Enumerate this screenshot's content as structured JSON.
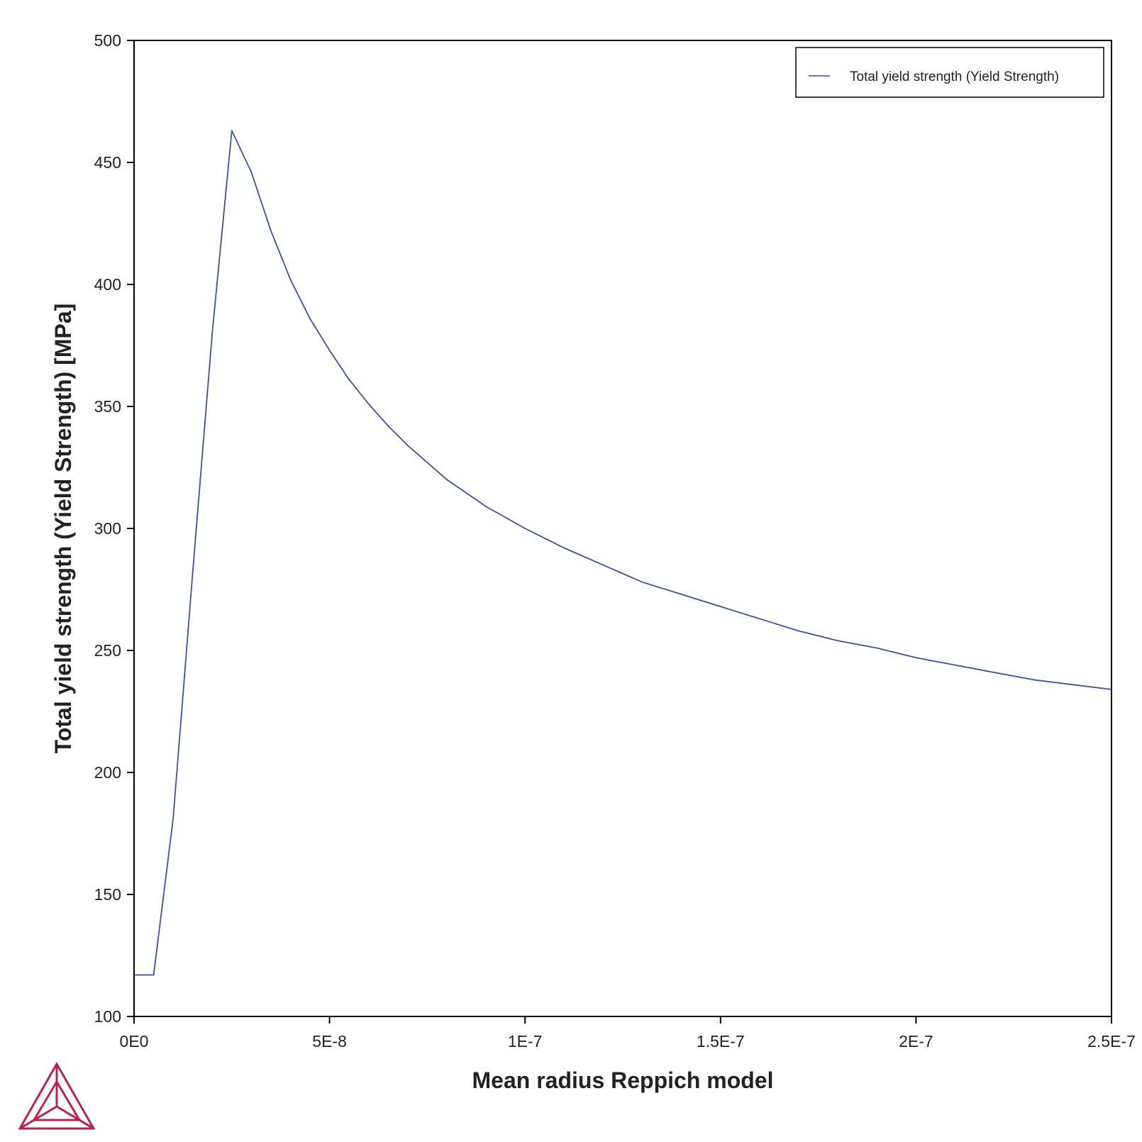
{
  "chart_data": {
    "type": "line",
    "xlabel": "Mean radius Reppich model",
    "ylabel": "Total yield strength (Yield Strength) [MPa]",
    "xlim": [
      0,
      2.5e-07
    ],
    "ylim": [
      100,
      500
    ],
    "xticks": [
      0,
      5e-08,
      1e-07,
      1.5e-07,
      2e-07,
      2.5e-07
    ],
    "xtick_labels": [
      "0E0",
      "5E-8",
      "1E-7",
      "1.5E-7",
      "2E-7",
      "2.5E-7"
    ],
    "yticks": [
      100,
      150,
      200,
      250,
      300,
      350,
      400,
      450,
      500
    ],
    "ytick_labels": [
      "100",
      "150",
      "200",
      "250",
      "300",
      "350",
      "400",
      "450",
      "500"
    ],
    "grid": false,
    "legend_position": "top-right",
    "series": [
      {
        "name": "Total yield strength (Yield Strength)",
        "color": "#3d4fa3",
        "x": [
          0,
          5e-09,
          1e-08,
          1.5e-08,
          2e-08,
          2.5e-08,
          3e-08,
          3.5e-08,
          4e-08,
          4.5e-08,
          5e-08,
          5.5e-08,
          6e-08,
          6.5e-08,
          7e-08,
          7.5e-08,
          8e-08,
          9e-08,
          1e-07,
          1.1e-07,
          1.2e-07,
          1.3e-07,
          1.4e-07,
          1.5e-07,
          1.6e-07,
          1.7e-07,
          1.8e-07,
          1.9e-07,
          2e-07,
          2.1e-07,
          2.2e-07,
          2.3e-07,
          2.4e-07,
          2.5e-07
        ],
        "y": [
          117,
          117,
          181,
          282,
          380,
          463,
          446,
          422,
          402,
          386,
          373,
          361,
          351,
          342,
          334,
          327,
          320,
          309,
          300,
          292,
          285,
          278,
          273,
          268,
          263,
          258,
          254,
          251,
          247,
          244,
          241,
          238,
          236,
          234
        ]
      }
    ]
  },
  "logo": {
    "name": "thermo-calc-triangle-logo",
    "color": "#b5234f"
  }
}
